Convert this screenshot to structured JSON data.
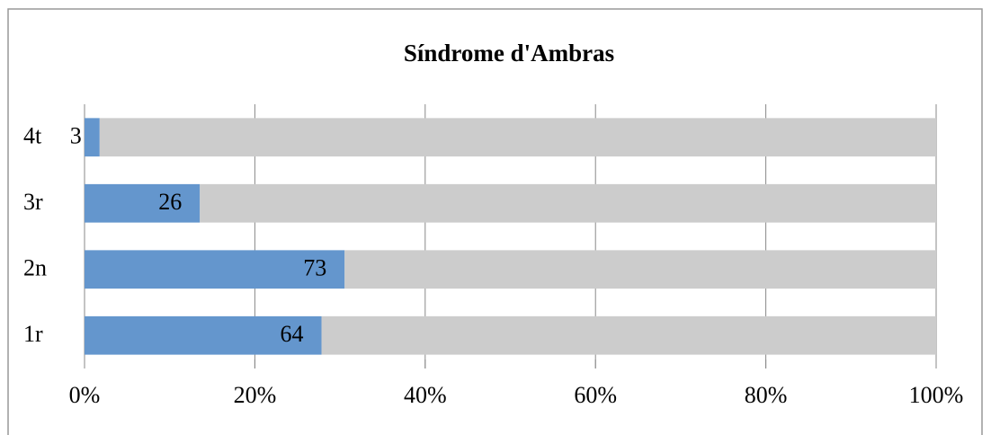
{
  "chart_data": {
    "type": "bar",
    "orientation": "horizontal",
    "stacking": "percent",
    "title": "Síndrome d'Ambras",
    "categories": [
      "1r",
      "2n",
      "3r",
      "4t"
    ],
    "series": [
      {
        "color": "#6496cd",
        "values": [
          64,
          73,
          26,
          3
        ]
      },
      {
        "color": "#cccccc",
        "values": [
          166,
          166,
          166,
          166
        ]
      }
    ],
    "data_labels_series": 0,
    "xlim": [
      0,
      100
    ],
    "xticks": [
      {
        "value": 0,
        "label": "0%"
      },
      {
        "value": 20,
        "label": "20%"
      },
      {
        "value": 40,
        "label": "40%"
      },
      {
        "value": 60,
        "label": "60%"
      },
      {
        "value": 80,
        "label": "80%"
      },
      {
        "value": 100,
        "label": "100%"
      }
    ],
    "grid": true
  }
}
